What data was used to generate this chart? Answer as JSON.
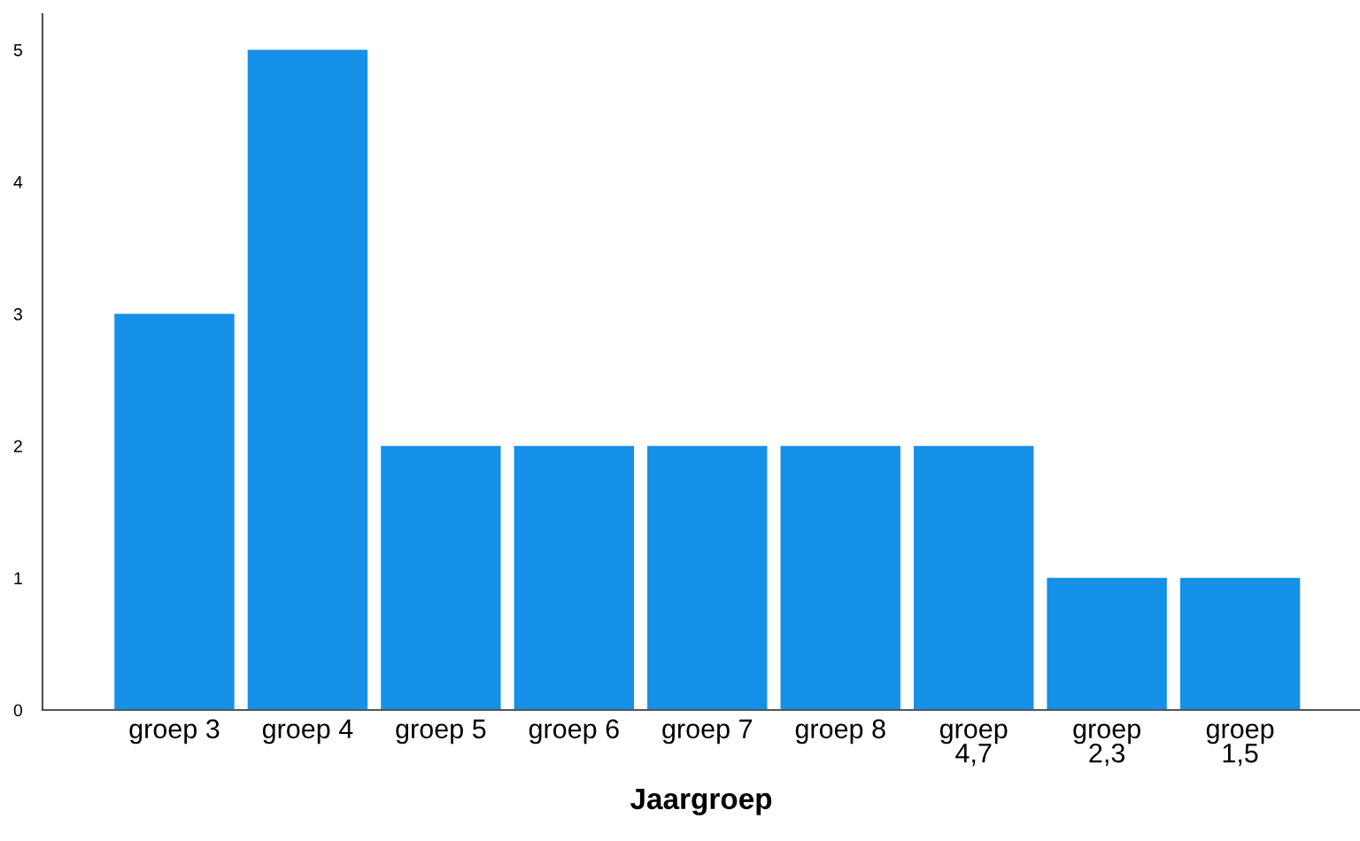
{
  "chart_data": {
    "type": "bar",
    "xlabel": "Jaargroep",
    "categories": [
      "groep 3",
      "groep 4",
      "groep 5",
      "groep 6",
      "groep 7",
      "groep 8",
      "groep\n4,7",
      "groep\n2,3",
      "groep\n1,5"
    ],
    "values": [
      3,
      5,
      2,
      2,
      2,
      2,
      2,
      1,
      1
    ],
    "color": "#1590e8",
    "ylim": [
      0,
      5.27
    ],
    "yticks": [
      0,
      1,
      2,
      3,
      4,
      5
    ],
    "grid": false,
    "legend": false
  }
}
